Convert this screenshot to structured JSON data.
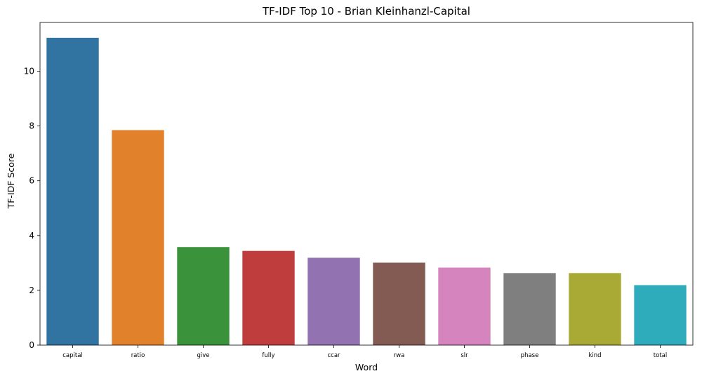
{
  "chart_data": {
    "type": "bar",
    "title": "TF-IDF Top 10 - Brian Kleinhanzl-Capital",
    "xlabel": "Word",
    "ylabel": "TF-IDF Score",
    "categories": [
      "capital",
      "ratio",
      "give",
      "fully",
      "ccar",
      "rwa",
      "slr",
      "phase",
      "kind",
      "total"
    ],
    "values": [
      11.22,
      7.85,
      3.58,
      3.44,
      3.19,
      3.01,
      2.83,
      2.63,
      2.63,
      2.19
    ],
    "colors": [
      "#3274a1",
      "#e1812c",
      "#3a923a",
      "#c03d3e",
      "#9372b2",
      "#845b53",
      "#d684bd",
      "#7f7f7f",
      "#a9aa35",
      "#2eacbc"
    ],
    "ylim": [
      0,
      11.78
    ],
    "yticks": [
      0,
      2,
      4,
      6,
      8,
      10
    ],
    "ytick_labels": [
      "0",
      "2",
      "4",
      "6",
      "8",
      "10"
    ],
    "grid": false,
    "legend": "none"
  }
}
